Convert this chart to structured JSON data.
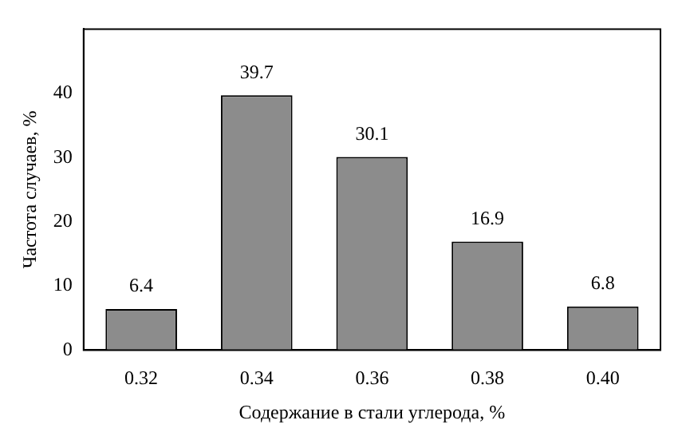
{
  "chart_data": {
    "type": "bar",
    "xlabel": "Содержание в стали углерода, %",
    "ylabel": "Частота случаев, %",
    "categories": [
      "0.32",
      "0.34",
      "0.36",
      "0.38",
      "0.40"
    ],
    "values": [
      6.4,
      39.7,
      30.1,
      16.9,
      6.8
    ],
    "color": "#8c8c8c",
    "ylim": [
      0,
      50
    ],
    "yticks": [
      0,
      10,
      20,
      30,
      40
    ],
    "grid": false,
    "legend": false,
    "data_labels": true
  }
}
